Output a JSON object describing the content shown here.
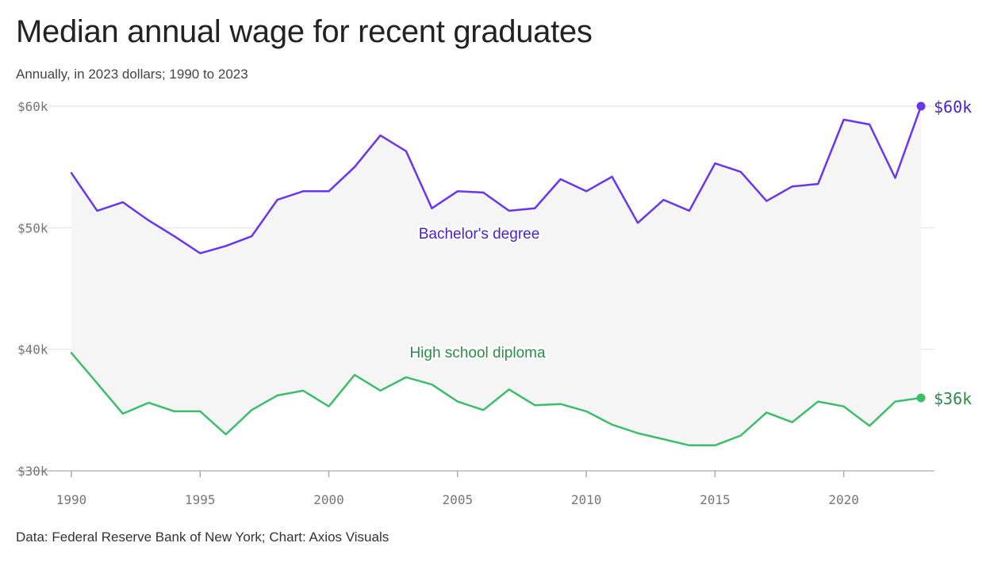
{
  "title": "Median annual wage for recent graduates",
  "subtitle": "Annually, in 2023 dollars; 1990 to 2023",
  "source": "Data: Federal Reserve Bank of New York; Chart: Axios Visuals",
  "chart_data": {
    "type": "line",
    "x": [
      1990,
      1991,
      1992,
      1993,
      1994,
      1995,
      1996,
      1997,
      1998,
      1999,
      2000,
      2001,
      2002,
      2003,
      2004,
      2005,
      2006,
      2007,
      2008,
      2009,
      2010,
      2011,
      2012,
      2013,
      2014,
      2015,
      2016,
      2017,
      2018,
      2019,
      2020,
      2021,
      2022,
      2023
    ],
    "series": [
      {
        "name": "Bachelor's degree",
        "color": "#6a35f0",
        "label_color": "#4b22c9",
        "end_label": "$60k",
        "values": [
          54500,
          51400,
          52100,
          50600,
          49300,
          47900,
          48500,
          49300,
          52300,
          53000,
          53000,
          55000,
          57600,
          56300,
          51600,
          53000,
          52900,
          51400,
          51600,
          54000,
          53000,
          54200,
          50400,
          52300,
          51400,
          55300,
          54600,
          52200,
          53400,
          53600,
          58900,
          58500,
          54100,
          60000
        ]
      },
      {
        "name": "High school diploma",
        "color": "#3dbd6a",
        "label_color": "#2e8b46",
        "end_label": "$36k",
        "values": [
          39700,
          37200,
          34700,
          35600,
          34900,
          34900,
          33000,
          35000,
          36200,
          36600,
          35300,
          37900,
          36600,
          37700,
          37100,
          35700,
          35000,
          36700,
          35400,
          35500,
          34900,
          33800,
          33100,
          32600,
          32100,
          32100,
          32900,
          34800,
          34000,
          35700,
          35300,
          33700,
          35700,
          36000
        ]
      }
    ],
    "ylim": [
      30000,
      60000
    ],
    "yticks": [
      {
        "value": 30000,
        "label": "$30k"
      },
      {
        "value": 40000,
        "label": "$40k"
      },
      {
        "value": 50000,
        "label": "$50k"
      },
      {
        "value": 60000,
        "label": "$60k"
      }
    ],
    "xticks": [
      1990,
      1995,
      2000,
      2005,
      2010,
      2015,
      2020
    ],
    "xlim": [
      1990,
      2023
    ],
    "grid": true,
    "fill_between_series": true,
    "fill_color": "#f5f5f6"
  }
}
